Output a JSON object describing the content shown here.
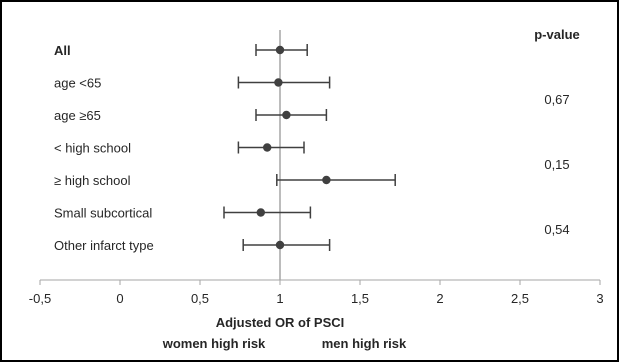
{
  "chart_data": {
    "type": "forest",
    "pvalue_header": "p-value",
    "xaxis": {
      "label": "Adjusted OR of PSCI",
      "min": -0.5,
      "max": 3,
      "ticks": [
        -0.5,
        0,
        0.5,
        1,
        1.5,
        2,
        2.5,
        3
      ],
      "tick_labels": [
        "-0,5",
        "0",
        "0,5",
        "1",
        "1,5",
        "2",
        "2,5",
        "3"
      ],
      "reference_line": 1,
      "left_annotation": "women high risk",
      "right_annotation": "men high risk"
    },
    "rows": [
      {
        "label": "All",
        "bold": true,
        "estimate": 1.0,
        "lower": 0.85,
        "upper": 1.17
      },
      {
        "label": "age <65",
        "bold": false,
        "estimate": 0.99,
        "lower": 0.74,
        "upper": 1.31
      },
      {
        "label": "age ≥65",
        "bold": false,
        "estimate": 1.04,
        "lower": 0.85,
        "upper": 1.29
      },
      {
        "label": "< high school",
        "bold": false,
        "estimate": 0.92,
        "lower": 0.74,
        "upper": 1.15
      },
      {
        "label": "≥ high school",
        "bold": false,
        "estimate": 1.29,
        "lower": 0.98,
        "upper": 1.72
      },
      {
        "label": "Small subcortical",
        "bold": false,
        "estimate": 0.88,
        "lower": 0.65,
        "upper": 1.19
      },
      {
        "label": "Other infarct type",
        "bold": false,
        "estimate": 1.0,
        "lower": 0.77,
        "upper": 1.31
      }
    ],
    "pvalues": [
      {
        "text": "0,67",
        "rows": [
          1,
          2
        ]
      },
      {
        "text": "0,15",
        "rows": [
          3,
          4
        ]
      },
      {
        "text": "0,54",
        "rows": [
          5,
          6
        ]
      }
    ],
    "colors": {
      "marker": "#404040",
      "axis": "#a6a6a6",
      "reference": "#a6a6a6",
      "text": "#262626"
    }
  }
}
